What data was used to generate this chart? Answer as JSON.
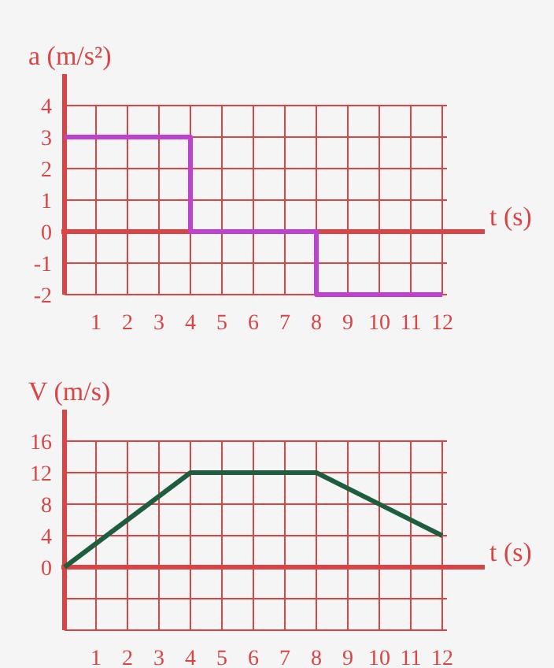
{
  "chart_data": [
    {
      "type": "step",
      "ylabel": "a (m/s²)",
      "xlabel": "t (s)",
      "x": [
        0,
        4,
        8,
        12
      ],
      "series": [
        {
          "color": "#c040d0",
          "values": [
            3,
            0,
            -2,
            -2
          ]
        }
      ],
      "xlim": [
        0,
        12
      ],
      "xticks": [
        1,
        2,
        3,
        4,
        5,
        6,
        7,
        8,
        9,
        10,
        11,
        12
      ],
      "ylim": [
        -2,
        4
      ],
      "yticks": [
        -2,
        -1,
        0,
        1,
        2,
        3,
        4
      ],
      "grid": true,
      "ref_lines": [
        {
          "axis": "y",
          "value": 0,
          "color": "#d94545"
        }
      ]
    },
    {
      "type": "line",
      "ylabel": "V (m/s)",
      "xlabel": "t (s)",
      "x": [
        0,
        4,
        8,
        12
      ],
      "series": [
        {
          "color": "#1e5e3e",
          "values": [
            0,
            12,
            12,
            4
          ]
        }
      ],
      "xlim": [
        0,
        12
      ],
      "xticks": [
        1,
        2,
        3,
        4,
        5,
        6,
        7,
        8,
        9,
        10,
        11,
        12
      ],
      "ylim": [
        -8,
        16
      ],
      "yticks": [
        {
          "value": -8,
          "label": null
        },
        {
          "value": -4,
          "label": null
        },
        0,
        4,
        8,
        12,
        16
      ],
      "grid": true,
      "ref_lines": [
        {
          "axis": "y",
          "value": 0,
          "color": "#d94545"
        }
      ]
    }
  ]
}
